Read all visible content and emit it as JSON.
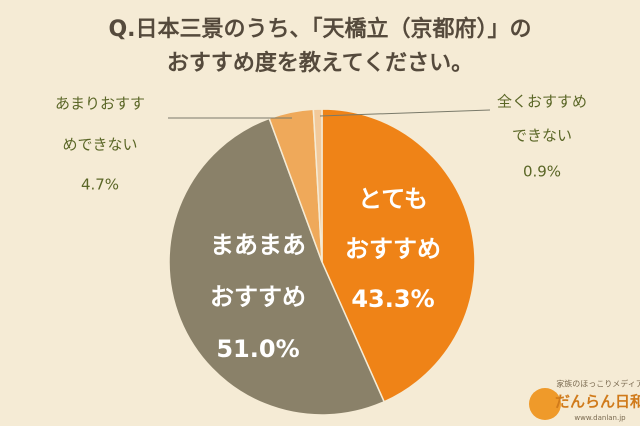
{
  "chart_data": {
    "type": "pie",
    "title": [
      "Q.日本三景のうち、「天橋立（京都府）」の",
      "おすすめ度を教えてください。"
    ],
    "categories": [
      [
        "とても",
        "おすすめ"
      ],
      [
        "まあまあ",
        "おすすめ"
      ],
      [
        "あまりおすす",
        "めできない"
      ],
      [
        "全くおすすめ",
        "できない"
      ]
    ],
    "values": [
      43.3,
      51.0,
      4.7,
      0.9
    ],
    "value_labels": [
      "43.3%",
      "51.0%",
      "4.7%",
      "0.9%"
    ],
    "colors": [
      "#ef8317",
      "#8a8169",
      "#efa95a",
      "#f2c99a"
    ]
  },
  "logo": {
    "tagline": "家族のほっこりメディア",
    "name": "だんらん日和",
    "url": "www.danlan.jp"
  }
}
